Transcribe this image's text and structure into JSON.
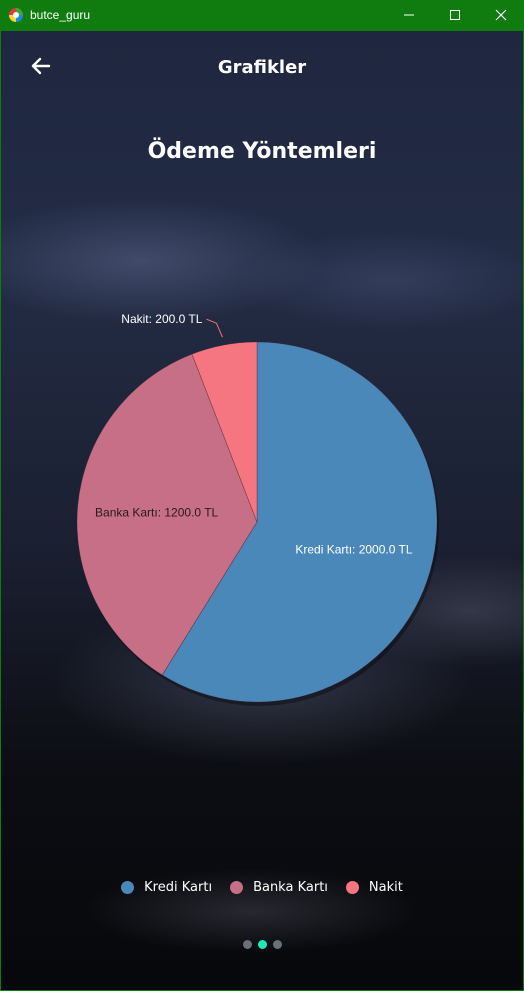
{
  "window": {
    "title": "butce_guru",
    "accent": "#107c10"
  },
  "header": {
    "title": "Grafikler",
    "back_icon": "arrow-left-icon"
  },
  "chart_data": {
    "type": "pie",
    "title": "Ödeme Yöntemleri",
    "unit": "TL",
    "slices": [
      {
        "name": "Kredi Kartı",
        "value": 2000.0,
        "label": "Kredi Kartı: 2000.0 TL",
        "color": "#4a88ba"
      },
      {
        "name": "Banka Kartı",
        "value": 1200.0,
        "label": "Banka Kartı: 1200.0 TL",
        "color": "#c66f86"
      },
      {
        "name": "Nakit",
        "value": 200.0,
        "label": "Nakit: 200.0 TL",
        "color": "#f57580"
      }
    ],
    "start_angle": "12 o'clock",
    "direction": "clockwise",
    "legend_position": "bottom"
  },
  "pager": {
    "count": 3,
    "active_index": 1,
    "active_color": "#1de9b6"
  }
}
